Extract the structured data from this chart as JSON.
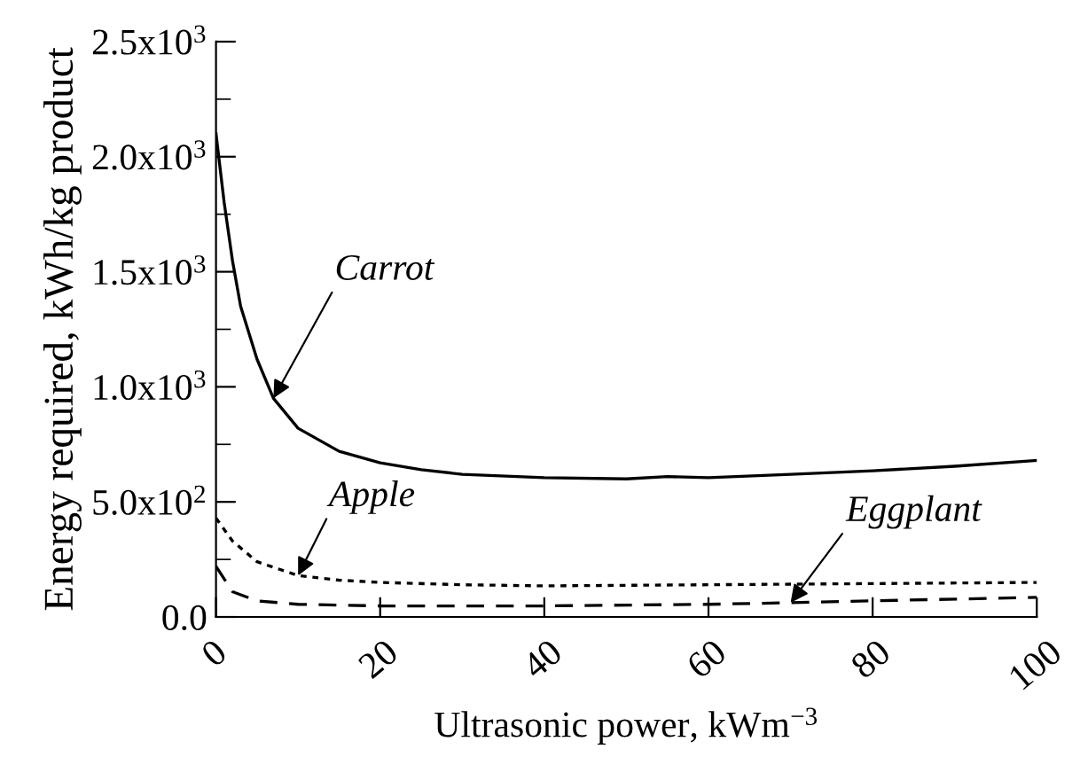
{
  "chart_data": {
    "type": "line",
    "xlabel": "Ultrasonic power, kWm$^{−3}$",
    "ylabel": "Energy required, kWh/kg product",
    "xlim": [
      0,
      100
    ],
    "xticks": [
      0,
      20,
      40,
      60,
      80,
      100
    ],
    "ylim": [
      0,
      2500
    ],
    "yticks": [
      {
        "value": 0,
        "label": "0.0"
      },
      {
        "value": 500,
        "label": "5.0x10$^{2}$"
      },
      {
        "value": 1000,
        "label": "1.0x10$^{3}$"
      },
      {
        "value": 1500,
        "label": "1.5x10$^{3}$"
      },
      {
        "value": 2000,
        "label": "2.0x10$^{3}$"
      },
      {
        "value": 2500,
        "label": "2.5x10$^{3}$"
      }
    ],
    "grid": false,
    "legend": false,
    "marker": "none",
    "series": [
      {
        "color": "#000000",
        "line_style": "solid",
        "x": [
          0,
          1,
          2,
          3,
          5,
          7,
          10,
          15,
          20,
          25,
          30,
          40,
          50,
          55,
          60,
          70,
          80,
          90,
          100
        ],
        "values": [
          2100,
          1800,
          1550,
          1350,
          1120,
          950,
          820,
          720,
          670,
          640,
          620,
          605,
          600,
          610,
          605,
          620,
          635,
          655,
          680
        ]
      },
      {
        "color": "#000000",
        "line_style": "dotted",
        "x": [
          0,
          2,
          5,
          10,
          15,
          20,
          30,
          40,
          60,
          80,
          100
        ],
        "values": [
          430,
          330,
          240,
          180,
          160,
          150,
          140,
          135,
          140,
          145,
          150
        ]
      },
      {
        "color": "#000000",
        "line_style": "dashed",
        "x": [
          0,
          2,
          5,
          10,
          20,
          40,
          60,
          70,
          80,
          100
        ],
        "values": [
          220,
          110,
          70,
          55,
          48,
          48,
          55,
          62,
          70,
          85
        ]
      }
    ],
    "annotations": [
      {
        "text": "Carrot",
        "x": 7,
        "y": 950
      },
      {
        "text": "Apple",
        "x": 10,
        "y": 180
      },
      {
        "text": "Eggplant",
        "x": 70,
        "y": 62
      }
    ]
  }
}
